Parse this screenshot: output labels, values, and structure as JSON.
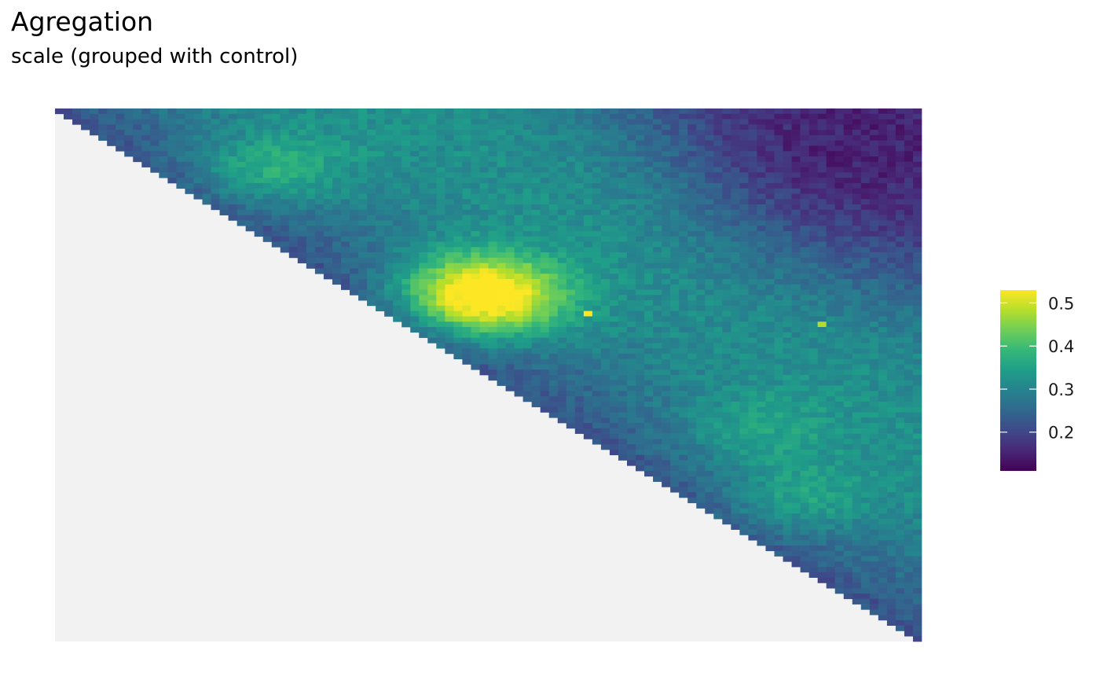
{
  "chart_data": {
    "type": "heatmap",
    "title": "Agregation",
    "subtitle": "scale (grouped with control)",
    "xlabel": "",
    "ylabel": "",
    "grid": false,
    "layout": "upper-triangular matrix; empty lower triangle shown as light grey panel",
    "n_bins": 100,
    "value_range": [
      0.11,
      0.53
    ],
    "colorscale": "viridis",
    "colors": {
      "panel_background": "#f2f2f2",
      "viridis_stops": [
        "#440154",
        "#482878",
        "#3e4989",
        "#31688e",
        "#26828e",
        "#1f9e89",
        "#35b779",
        "#6ece58",
        "#b5de2b",
        "#fde725"
      ]
    },
    "legend": {
      "position": "right",
      "ticks": [
        0.2,
        0.3,
        0.4,
        0.5
      ],
      "tick_labels": [
        "0.2",
        "0.3",
        "0.4",
        "0.5"
      ]
    },
    "features": {
      "near_diagonal_value": 0.22,
      "far_corner_value": 0.15,
      "hotspots": [
        {
          "row": 33,
          "col": 48,
          "peak": 0.5
        },
        {
          "row": 37,
          "col": 50,
          "peak": 0.44
        },
        {
          "row": 11,
          "col": 24,
          "peak": 0.4
        },
        {
          "row": 73,
          "col": 85,
          "peak": 0.38
        },
        {
          "row": 60,
          "col": 80,
          "peak": 0.36
        }
      ],
      "isolated_high_cells": [
        {
          "row": 38,
          "col": 61,
          "value": 0.53
        },
        {
          "row": 40,
          "col": 88,
          "value": 0.48
        }
      ]
    }
  }
}
